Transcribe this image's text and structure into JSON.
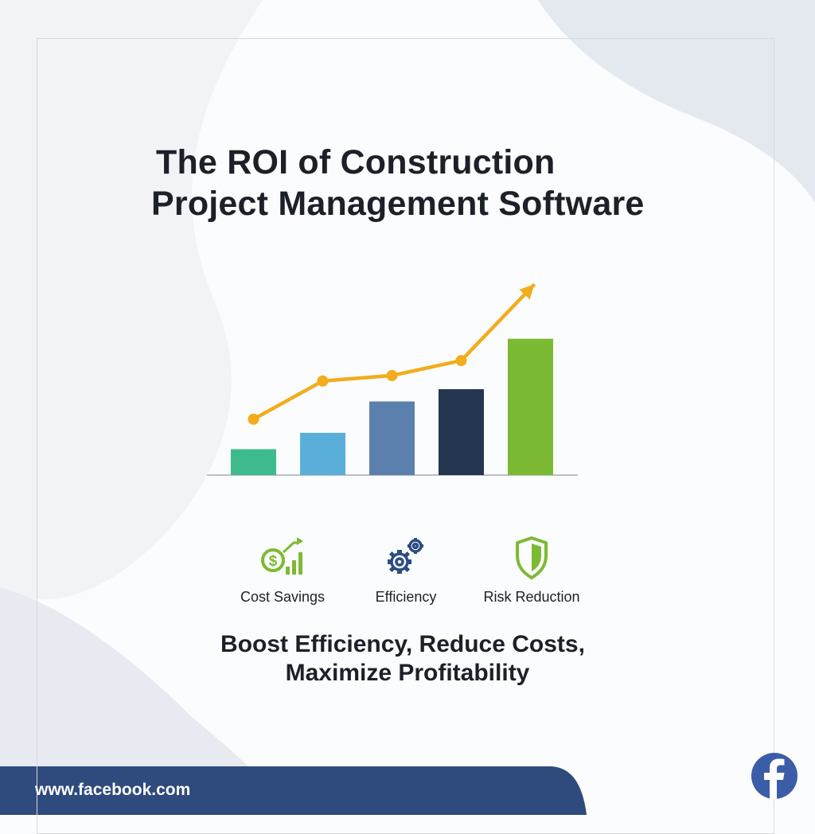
{
  "headline": {
    "line1": "The ROI of Construction",
    "line2": "Project Management Software"
  },
  "chart_data": {
    "type": "bar",
    "categories": [
      "",
      "",
      "",
      "",
      ""
    ],
    "values": [
      1.9,
      3.1,
      5.4,
      6.3,
      10.0
    ],
    "bar_colors": [
      "#3dbb8c",
      "#5aafda",
      "#5b80ae",
      "#243650",
      "#7dba33"
    ],
    "trend_line": {
      "values": [
        4.1,
        6.9,
        7.3,
        8.4,
        14.0
      ],
      "arrow_head": true,
      "color": "#f2ac1c"
    },
    "title": "",
    "xlabel": "",
    "ylabel": "",
    "ylim": [
      0,
      15
    ],
    "grid": false
  },
  "features": [
    {
      "icon": "dollar-growth-icon",
      "label": "Cost Savings",
      "color": "#7dba33"
    },
    {
      "icon": "gears-icon",
      "label": "Efficiency",
      "color": "#2c4c82"
    },
    {
      "icon": "shield-icon",
      "label": "Risk Reduction",
      "color": "#7dba33"
    }
  ],
  "tagline": {
    "line1": "Boost Efficiency, Reduce Costs,",
    "line2": "Maximize Profitability"
  },
  "footer": {
    "url": "www.facebook.com",
    "bar_color": "#2f4a7d",
    "social_icon": "facebook-icon",
    "social_color": "#3b5da8"
  }
}
